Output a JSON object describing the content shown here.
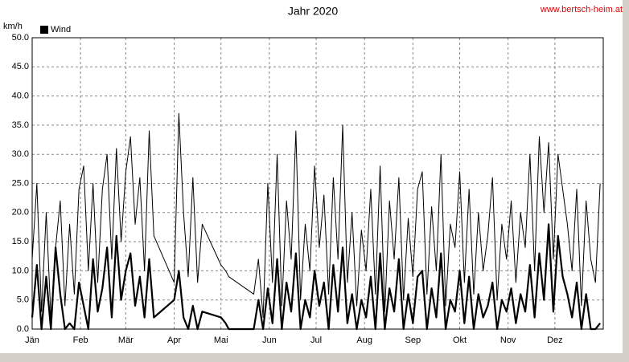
{
  "chart_data": {
    "type": "line",
    "title": "Jahr 2020",
    "ylabel": "km/h",
    "source": "www.bertsch-heim.at",
    "legend": "top-left",
    "grid": true,
    "xlim": [
      0,
      366
    ],
    "ylim": [
      0,
      50
    ],
    "xticks": [
      {
        "value": 0,
        "label": "Jän"
      },
      {
        "value": 31,
        "label": "Feb"
      },
      {
        "value": 60,
        "label": "Mär"
      },
      {
        "value": 91,
        "label": "Apr"
      },
      {
        "value": 121,
        "label": "Mai"
      },
      {
        "value": 152,
        "label": "Jun"
      },
      {
        "value": 182,
        "label": "Jul"
      },
      {
        "value": 213,
        "label": "Aug"
      },
      {
        "value": 244,
        "label": "Sep"
      },
      {
        "value": 274,
        "label": "Okt"
      },
      {
        "value": 305,
        "label": "Nov"
      },
      {
        "value": 335,
        "label": "Dez"
      }
    ],
    "yticks": [
      {
        "value": 0,
        "label": "0.0"
      },
      {
        "value": 5,
        "label": "5.0"
      },
      {
        "value": 10,
        "label": "10.0"
      },
      {
        "value": 15,
        "label": "15.0"
      },
      {
        "value": 20,
        "label": "20.0"
      },
      {
        "value": 25,
        "label": "25.0"
      },
      {
        "value": 30,
        "label": "30.0"
      },
      {
        "value": 35,
        "label": "35.0"
      },
      {
        "value": 40,
        "label": "40.0"
      },
      {
        "value": 45,
        "label": "45.0"
      },
      {
        "value": 50,
        "label": "50.0"
      }
    ],
    "x": [
      0,
      3,
      6,
      9,
      12,
      15,
      18,
      21,
      24,
      27,
      30,
      33,
      36,
      39,
      42,
      45,
      48,
      51,
      54,
      57,
      60,
      63,
      66,
      69,
      72,
      75,
      78,
      91,
      94,
      97,
      100,
      103,
      106,
      109,
      121,
      124,
      126,
      142,
      145,
      148,
      151,
      154,
      157,
      160,
      163,
      166,
      169,
      172,
      175,
      178,
      181,
      184,
      187,
      190,
      193,
      196,
      199,
      202,
      205,
      208,
      211,
      214,
      217,
      220,
      223,
      226,
      229,
      232,
      235,
      238,
      241,
      244,
      247,
      250,
      253,
      256,
      259,
      262,
      265,
      268,
      271,
      274,
      277,
      280,
      283,
      286,
      289,
      292,
      295,
      298,
      301,
      304,
      307,
      310,
      313,
      316,
      319,
      322,
      325,
      328,
      331,
      334,
      337,
      340,
      343,
      346,
      349,
      352,
      355,
      358,
      361,
      364
    ],
    "series": [
      {
        "color": "#000000",
        "width": 1,
        "values": [
          12,
          25,
          3,
          20,
          2,
          14,
          22,
          4,
          18,
          6,
          24,
          28,
          10,
          25,
          8,
          24,
          30,
          12,
          31,
          15,
          27,
          33,
          18,
          26,
          10,
          34,
          16,
          8,
          37,
          20,
          9,
          26,
          8,
          18,
          11,
          10,
          9,
          6,
          12,
          2,
          25,
          8,
          30,
          4,
          22,
          12,
          34,
          5,
          18,
          10,
          28,
          14,
          23,
          6,
          26,
          12,
          35,
          8,
          20,
          4,
          17,
          10,
          24,
          6,
          28,
          3,
          22,
          12,
          26,
          5,
          19,
          9,
          24,
          27,
          6,
          21,
          10,
          30,
          4,
          18,
          14,
          27,
          8,
          24,
          6,
          20,
          10,
          16,
          26,
          5,
          18,
          12,
          22,
          8,
          20,
          14,
          30,
          10,
          33,
          20,
          32,
          12,
          30,
          24,
          18,
          10,
          24,
          4,
          22,
          12,
          8,
          25
        ]
      },
      {
        "name": "Wind",
        "color": "#000000",
        "width": 2.2,
        "values": [
          2,
          11,
          0,
          9,
          0,
          14,
          6,
          0,
          1,
          0,
          8,
          4,
          0,
          12,
          3,
          7,
          14,
          2,
          16,
          5,
          10,
          13,
          4,
          9,
          2,
          12,
          2,
          5,
          10,
          2,
          0,
          4,
          0,
          3,
          2,
          1,
          0,
          0,
          5,
          0,
          7,
          1,
          12,
          0,
          8,
          3,
          13,
          0,
          5,
          2,
          10,
          4,
          8,
          0,
          11,
          3,
          14,
          1,
          6,
          0,
          5,
          2,
          9,
          0,
          13,
          0,
          7,
          3,
          12,
          0,
          6,
          1,
          9,
          10,
          0,
          7,
          2,
          13,
          0,
          5,
          3,
          10,
          1,
          9,
          0,
          6,
          2,
          4,
          8,
          0,
          5,
          3,
          7,
          1,
          6,
          3,
          11,
          2,
          13,
          5,
          18,
          3,
          16,
          9,
          6,
          2,
          8,
          0,
          6,
          0,
          0,
          1
        ]
      }
    ]
  }
}
